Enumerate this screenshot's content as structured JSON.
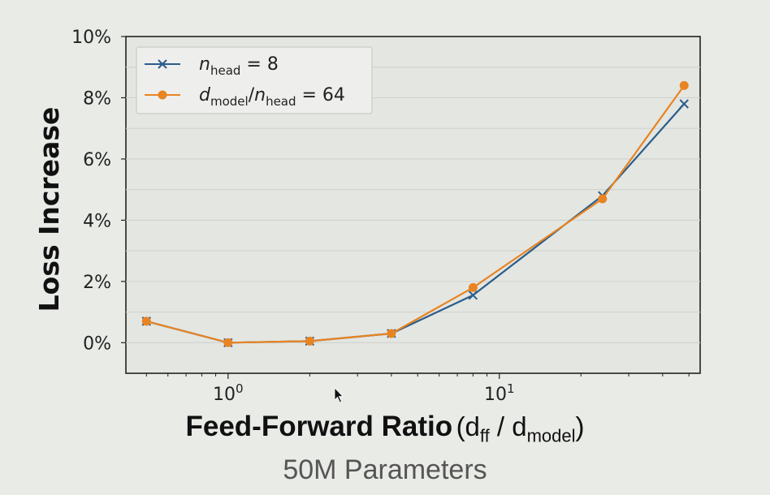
{
  "chart_data": {
    "type": "line",
    "ylabel": "Loss Increase",
    "xlabel": {
      "main": "Feed-Forward Ratio",
      "paren": "(d",
      "paren_sub1": "ff",
      "paren_mid": " / d",
      "paren_sub2": "model",
      "paren_end": ")"
    },
    "subtitle": "50M Parameters",
    "x_scale": "log",
    "xlim": [
      0.42,
      55
    ],
    "ylim": [
      -0.01,
      0.1
    ],
    "x_ticks": [
      {
        "value": 1,
        "base": "10",
        "exp": "0"
      },
      {
        "value": 10,
        "base": "10",
        "exp": "1"
      }
    ],
    "y_ticks": [
      {
        "value": 0.0,
        "label": "0%"
      },
      {
        "value": 0.02,
        "label": "2%"
      },
      {
        "value": 0.04,
        "label": "4%"
      },
      {
        "value": 0.06,
        "label": "6%"
      },
      {
        "value": 0.08,
        "label": "8%"
      },
      {
        "value": 0.1,
        "label": "10%"
      }
    ],
    "grid": true,
    "legend_position": "top-left",
    "series": [
      {
        "name_parts": [
          "n",
          "head",
          " = 8"
        ],
        "marker": "x",
        "color": "#2a5d8c",
        "x": [
          0.5,
          1,
          2,
          4,
          8,
          24,
          48
        ],
        "y": [
          0.007,
          0.0,
          0.0005,
          0.003,
          0.0155,
          0.048,
          0.078
        ]
      },
      {
        "name_parts": [
          "d",
          "model",
          "/",
          "n",
          "head",
          " = 64"
        ],
        "marker": "o",
        "color": "#e88422",
        "x": [
          0.5,
          1,
          2,
          4,
          8,
          24,
          48
        ],
        "y": [
          0.007,
          0.0,
          0.0005,
          0.003,
          0.018,
          0.047,
          0.084
        ]
      }
    ]
  }
}
